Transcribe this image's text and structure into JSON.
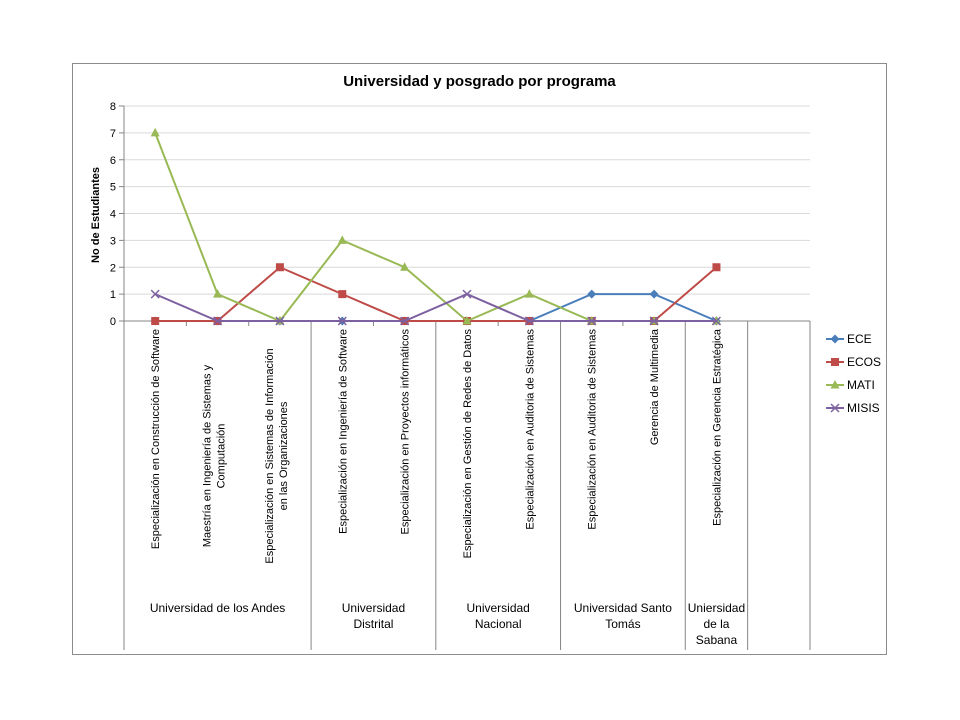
{
  "chart_data": {
    "type": "line",
    "title": "Universidad y posgrado por programa",
    "xlabel": "",
    "ylabel": "No de Estudiantes",
    "ylim": [
      0,
      8
    ],
    "yticks": [
      0,
      1,
      2,
      3,
      4,
      5,
      6,
      7,
      8
    ],
    "grid": "horizontal",
    "legend_position": "right",
    "categories": [
      "Especialización en Construcción de Software",
      "Maestría en Ingeniería de Sistemas y Computación",
      "Especialización en Sistemas de Información en las Organizaciones",
      "Especialización en Ingeniería de Software",
      "Especialización en Proyectos  informáticos",
      "Especialización en Gestión de Redes de Datos",
      "Especialización en Auditoria de Sistemas",
      "Especialización en  Auditoria de Sistemas",
      "Gerencia de Multimedia",
      "Especialización en Gerencia Estratégica"
    ],
    "groups": [
      {
        "label": "Universidad de los Andes",
        "span": 3
      },
      {
        "label": "Universidad Distrital",
        "span": 2
      },
      {
        "label": "Universidad Nacional",
        "span": 2
      },
      {
        "label": "Universidad Santo Tomás",
        "span": 2
      },
      {
        "label": "Uniersidad de la Sabana",
        "span": 1
      }
    ],
    "series": [
      {
        "name": "ECE",
        "color": "#4a7ebb",
        "marker": "diamond",
        "values": [
          0,
          0,
          0,
          0,
          0,
          0,
          0,
          1,
          1,
          0
        ]
      },
      {
        "name": "ECOS",
        "color": "#be4b48",
        "marker": "square",
        "values": [
          0,
          0,
          2,
          1,
          0,
          0,
          0,
          0,
          0,
          2
        ]
      },
      {
        "name": "MATI",
        "color": "#98b954",
        "marker": "triangle",
        "values": [
          7,
          1,
          0,
          3,
          2,
          0,
          1,
          0,
          0,
          0
        ]
      },
      {
        "name": "MISIS",
        "color": "#7d60a0",
        "marker": "x",
        "values": [
          1,
          0,
          0,
          0,
          0,
          1,
          0,
          0,
          0,
          0
        ]
      }
    ]
  }
}
